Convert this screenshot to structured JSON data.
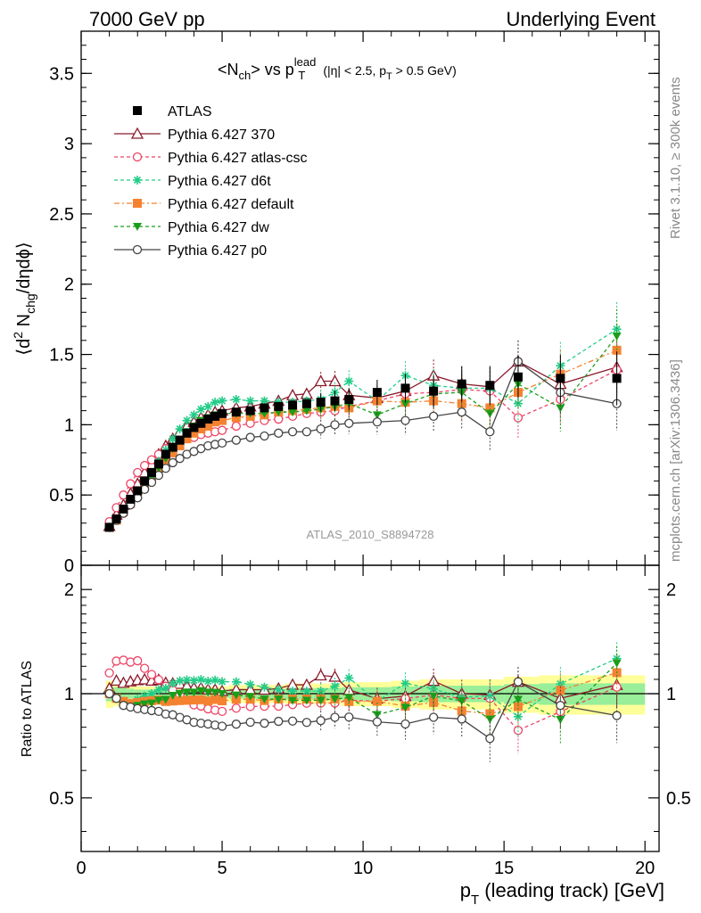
{
  "header": {
    "left": "7000 GeV pp",
    "right": "Underlying Event"
  },
  "side_notes": {
    "rivet": "Rivet 3.1.10, ≥ 300k events",
    "mcplots": "mcplots.cern.ch [arXiv:1306.3436]"
  },
  "chart_data": {
    "type": "scatter",
    "title": {
      "main": "<N",
      "main_sub": "ch",
      "mid": "> vs p",
      "p_sup": "lead",
      "p_sub": "T",
      "cut1": "(|η| < 2.5, p",
      "cut_sub": "T",
      "cut2": " > 0.5 GeV)"
    },
    "watermark": "ATLAS_2010_S8894728",
    "ylabel": {
      "a": "⟨d",
      "sup": "2",
      "b": " N",
      "sub": "chg",
      "c": "/dηdϕ⟩"
    },
    "ratio_ylabel": "Ratio to ATLAS",
    "xlabel": {
      "p": "p",
      "sub": "T",
      "rest": " (leading track) [GeV]"
    },
    "xlim": [
      0,
      20.5
    ],
    "ylim": [
      0,
      3.8
    ],
    "ratio_ylim": [
      0.35,
      2.35
    ],
    "x_ticks": [
      "0",
      "5",
      "10",
      "15",
      "20"
    ],
    "y_ticks": [
      "0",
      "0.5",
      "1",
      "1.5",
      "2",
      "2.5",
      "3",
      "3.5"
    ],
    "ratio_ticks": [
      "0.5",
      "1",
      "2"
    ],
    "x": [
      1.0,
      1.25,
      1.5,
      1.75,
      2.0,
      2.25,
      2.5,
      2.75,
      3.0,
      3.25,
      3.5,
      3.75,
      4.0,
      4.25,
      4.5,
      4.75,
      5.0,
      5.5,
      6.0,
      6.5,
      7.0,
      7.5,
      8.0,
      8.5,
      9.0,
      9.5,
      10.5,
      11.5,
      12.5,
      13.5,
      14.5,
      15.5,
      17.0,
      19.0
    ],
    "series": [
      {
        "name": "ATLAS",
        "color": "#000000",
        "marker": "square",
        "values": [
          0.27,
          0.33,
          0.4,
          0.47,
          0.53,
          0.6,
          0.66,
          0.72,
          0.79,
          0.84,
          0.89,
          0.94,
          0.98,
          1.01,
          1.04,
          1.06,
          1.08,
          1.09,
          1.1,
          1.12,
          1.13,
          1.14,
          1.15,
          1.16,
          1.17,
          1.18,
          1.23,
          1.26,
          1.24,
          1.29,
          1.28,
          1.34,
          1.33,
          1.33
        ]
      },
      {
        "name": "Pythia 6.427 370",
        "color": "#8b1a2b",
        "marker": "triangle-open",
        "values": [
          0.28,
          0.36,
          0.43,
          0.51,
          0.58,
          0.66,
          0.72,
          0.79,
          0.85,
          0.9,
          0.95,
          0.99,
          1.02,
          1.05,
          1.07,
          1.09,
          1.1,
          1.12,
          1.13,
          1.15,
          1.17,
          1.21,
          1.22,
          1.31,
          1.31,
          1.21,
          1.19,
          1.24,
          1.35,
          1.29,
          1.27,
          1.45,
          1.29,
          1.41
        ]
      },
      {
        "name": "Pythia 6.427 atlas-csc",
        "color": "#ee4466",
        "marker": "circle-open",
        "values": [
          0.31,
          0.41,
          0.5,
          0.58,
          0.66,
          0.71,
          0.75,
          0.79,
          0.83,
          0.86,
          0.88,
          0.9,
          0.91,
          0.93,
          0.94,
          0.95,
          0.96,
          0.99,
          1.01,
          1.03,
          1.04,
          1.06,
          1.08,
          1.09,
          1.1,
          1.13,
          1.17,
          1.22,
          1.23,
          1.25,
          1.24,
          1.05,
          1.18,
          1.39
        ]
      },
      {
        "name": "Pythia 6.427 d6t",
        "color": "#22cc88",
        "marker": "star",
        "values": [
          0.27,
          0.32,
          0.38,
          0.44,
          0.51,
          0.59,
          0.66,
          0.74,
          0.82,
          0.9,
          0.97,
          1.03,
          1.07,
          1.11,
          1.13,
          1.16,
          1.17,
          1.18,
          1.17,
          1.17,
          1.16,
          1.16,
          1.17,
          1.18,
          1.23,
          1.31,
          1.17,
          1.35,
          1.28,
          1.26,
          1.26,
          1.15,
          1.42,
          1.68
        ]
      },
      {
        "name": "Pythia 6.427 default",
        "color": "#f58231",
        "marker": "square",
        "values": [
          0.27,
          0.32,
          0.38,
          0.44,
          0.5,
          0.57,
          0.63,
          0.69,
          0.75,
          0.8,
          0.85,
          0.9,
          0.94,
          0.97,
          0.99,
          1.02,
          1.03,
          1.05,
          1.06,
          1.07,
          1.09,
          1.1,
          1.11,
          1.12,
          1.13,
          1.12,
          1.17,
          1.16,
          1.17,
          1.15,
          1.12,
          1.23,
          1.36,
          1.53
        ]
      },
      {
        "name": "Pythia 6.427 dw",
        "color": "#1a9e1a",
        "marker": "triangle-down",
        "values": [
          0.27,
          0.32,
          0.37,
          0.43,
          0.49,
          0.56,
          0.62,
          0.69,
          0.76,
          0.83,
          0.89,
          0.95,
          0.99,
          1.03,
          1.05,
          1.07,
          1.08,
          1.08,
          1.08,
          1.08,
          1.09,
          1.09,
          1.1,
          1.11,
          1.13,
          1.15,
          1.07,
          1.15,
          1.22,
          1.23,
          1.08,
          1.29,
          1.12,
          1.63
        ]
      },
      {
        "name": "Pythia 6.427 p0",
        "color": "#444444",
        "marker": "circle-open",
        "values": [
          0.27,
          0.32,
          0.37,
          0.43,
          0.48,
          0.54,
          0.59,
          0.64,
          0.69,
          0.73,
          0.76,
          0.79,
          0.81,
          0.83,
          0.85,
          0.86,
          0.87,
          0.89,
          0.91,
          0.92,
          0.94,
          0.95,
          0.95,
          0.97,
          1.0,
          1.01,
          1.02,
          1.03,
          1.06,
          1.09,
          0.95,
          1.45,
          1.23,
          1.15
        ]
      }
    ]
  }
}
